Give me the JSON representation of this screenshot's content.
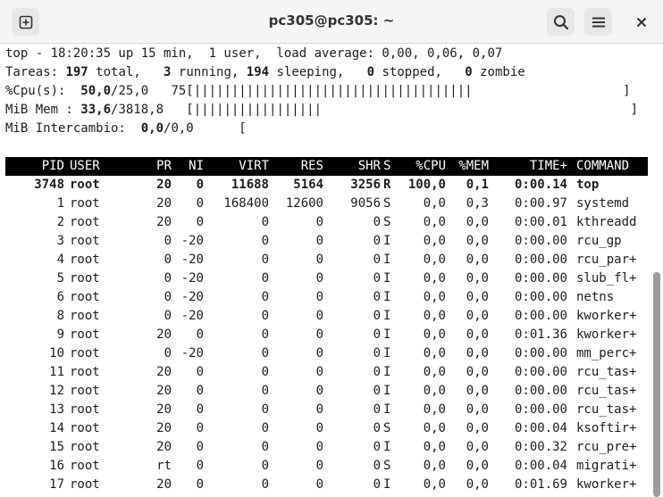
{
  "window": {
    "title": "pc305@pc305: ~"
  },
  "summary": {
    "line1": "top - 18:20:35 up 15 min,  1 user,  load average: 0,00, 0,06, 0,07",
    "tasks": {
      "label": "Tareas: ",
      "total": "197",
      "total_label": " total,   ",
      "running": "3",
      "running_label": " running, ",
      "sleeping": "194",
      "sleeping_label": " sleeping,   ",
      "stopped": "0",
      "stopped_label": " stopped,   ",
      "zombie": "0",
      "zombie_label": " zombie"
    },
    "cpu": {
      "label": "%Cpu(s):  ",
      "value": "50,0",
      "rest": "/25,0   75[|||||||||||||||||||||||||||||||||||||                    ]"
    },
    "mem": {
      "label": "MiB Mem : ",
      "value": "33,6",
      "rest": "/3818,8   [|||||||||||||||||                                         ]"
    },
    "swap": {
      "label": "MiB Intercambio:  ",
      "value": "0,0",
      "rest": "/0,0      ["
    }
  },
  "table": {
    "headers": [
      "PID",
      "USER",
      "PR",
      "NI",
      "VIRT",
      "RES",
      "SHR",
      "S",
      "%CPU",
      "%MEM",
      "TIME+",
      "COMMAND"
    ],
    "rows": [
      [
        "3748",
        "root",
        "20",
        "0",
        "11688",
        "5164",
        "3256",
        "R",
        "100,0",
        "0,1",
        "0:00.14",
        "top"
      ],
      [
        "1",
        "root",
        "20",
        "0",
        "168400",
        "12600",
        "9056",
        "S",
        "0,0",
        "0,3",
        "0:00.97",
        "systemd"
      ],
      [
        "2",
        "root",
        "20",
        "0",
        "0",
        "0",
        "0",
        "S",
        "0,0",
        "0,0",
        "0:00.01",
        "kthreadd"
      ],
      [
        "3",
        "root",
        "0",
        "-20",
        "0",
        "0",
        "0",
        "I",
        "0,0",
        "0,0",
        "0:00.00",
        "rcu_gp"
      ],
      [
        "4",
        "root",
        "0",
        "-20",
        "0",
        "0",
        "0",
        "I",
        "0,0",
        "0,0",
        "0:00.00",
        "rcu_par+"
      ],
      [
        "5",
        "root",
        "0",
        "-20",
        "0",
        "0",
        "0",
        "I",
        "0,0",
        "0,0",
        "0:00.00",
        "slub_fl+"
      ],
      [
        "6",
        "root",
        "0",
        "-20",
        "0",
        "0",
        "0",
        "I",
        "0,0",
        "0,0",
        "0:00.00",
        "netns"
      ],
      [
        "8",
        "root",
        "0",
        "-20",
        "0",
        "0",
        "0",
        "I",
        "0,0",
        "0,0",
        "0:00.00",
        "kworker+"
      ],
      [
        "9",
        "root",
        "20",
        "0",
        "0",
        "0",
        "0",
        "I",
        "0,0",
        "0,0",
        "0:01.36",
        "kworker+"
      ],
      [
        "10",
        "root",
        "0",
        "-20",
        "0",
        "0",
        "0",
        "I",
        "0,0",
        "0,0",
        "0:00.00",
        "mm_perc+"
      ],
      [
        "11",
        "root",
        "20",
        "0",
        "0",
        "0",
        "0",
        "I",
        "0,0",
        "0,0",
        "0:00.00",
        "rcu_tas+"
      ],
      [
        "12",
        "root",
        "20",
        "0",
        "0",
        "0",
        "0",
        "I",
        "0,0",
        "0,0",
        "0:00.00",
        "rcu_tas+"
      ],
      [
        "13",
        "root",
        "20",
        "0",
        "0",
        "0",
        "0",
        "I",
        "0,0",
        "0,0",
        "0:00.00",
        "rcu_tas+"
      ],
      [
        "14",
        "root",
        "20",
        "0",
        "0",
        "0",
        "0",
        "S",
        "0,0",
        "0,0",
        "0:00.04",
        "ksoftir+"
      ],
      [
        "15",
        "root",
        "20",
        "0",
        "0",
        "0",
        "0",
        "I",
        "0,0",
        "0,0",
        "0:00.32",
        "rcu_pre+"
      ],
      [
        "16",
        "root",
        "rt",
        "0",
        "0",
        "0",
        "0",
        "S",
        "0,0",
        "0,0",
        "0:00.04",
        "migrati+"
      ],
      [
        "17",
        "root",
        "20",
        "0",
        "0",
        "0",
        "0",
        "I",
        "0,0",
        "0,0",
        "0:01.69",
        "kworker+"
      ]
    ]
  },
  "icons": {
    "new_tab": "new-tab-icon",
    "search": "search-icon",
    "menu": "hamburger-menu-icon",
    "close": "close-icon"
  }
}
